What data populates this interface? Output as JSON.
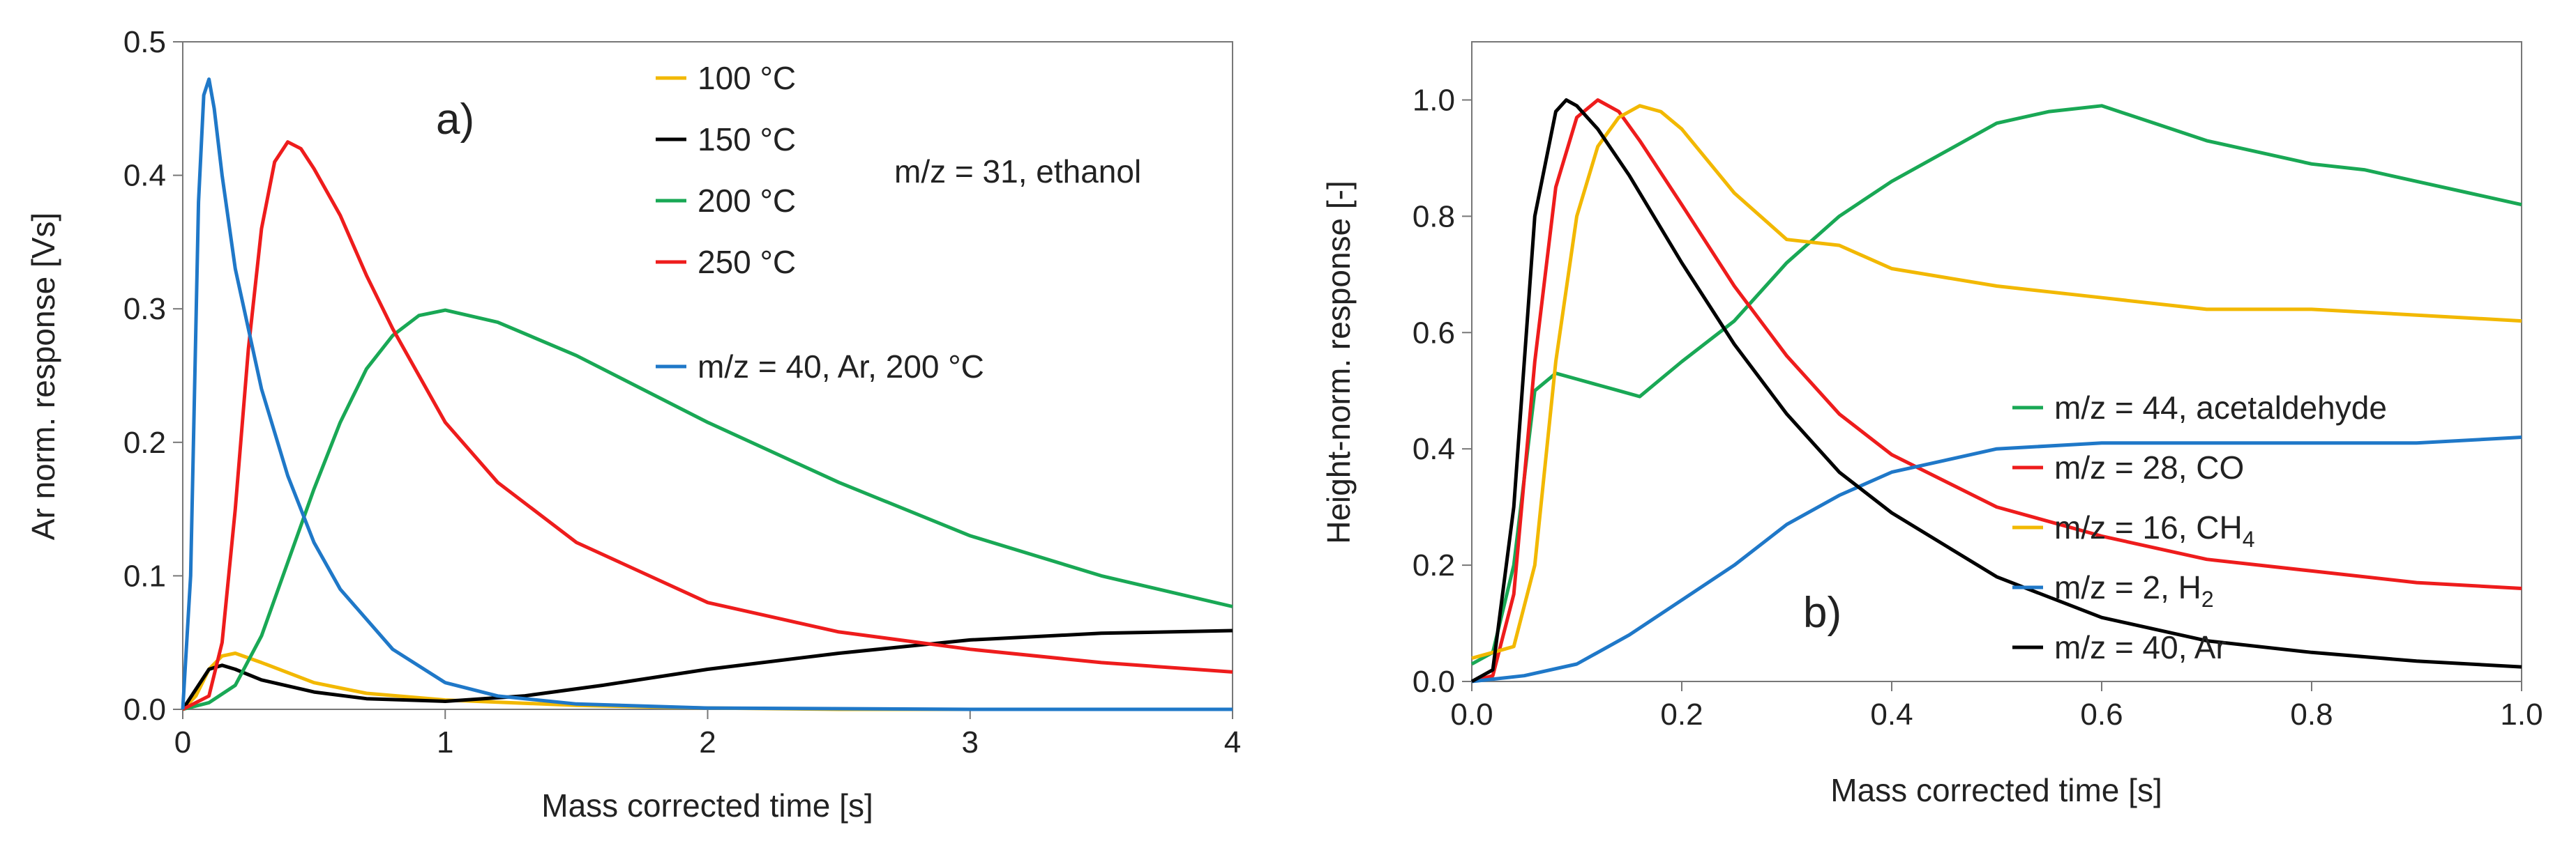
{
  "chart_data": [
    {
      "id": "a",
      "type": "line",
      "panel_label": "a)",
      "annotation": "m/z = 31, ethanol",
      "xlabel": "Mass corrected time [s]",
      "ylabel": "Ar norm. response [Vs]",
      "xlim": [
        0,
        4
      ],
      "ylim": [
        0,
        0.5
      ],
      "xticks": [
        0,
        1,
        2,
        3,
        4
      ],
      "xtick_labels": [
        "0",
        "1",
        "2",
        "3",
        "4"
      ],
      "yticks": [
        0,
        0.1,
        0.2,
        0.3,
        0.4,
        0.5
      ],
      "ytick_labels": [
        "0.0",
        "0.1",
        "0.2",
        "0.3",
        "0.4",
        "0.5"
      ],
      "legend_position": "top-right",
      "series": [
        {
          "name": "100 °C",
          "color": "#f2b800",
          "x": [
            0,
            0.05,
            0.1,
            0.15,
            0.2,
            0.3,
            0.5,
            0.7,
            1.0,
            1.5,
            2.0,
            2.5,
            3,
            4
          ],
          "y": [
            0,
            0.01,
            0.03,
            0.04,
            0.042,
            0.035,
            0.02,
            0.012,
            0.007,
            0.003,
            0.001,
            0,
            0,
            0
          ]
        },
        {
          "name": "150 °C",
          "color": "#000000",
          "x": [
            0,
            0.05,
            0.1,
            0.15,
            0.2,
            0.3,
            0.5,
            0.7,
            1.0,
            1.3,
            1.6,
            2.0,
            2.5,
            3.0,
            3.5,
            4.0
          ],
          "y": [
            0,
            0.015,
            0.03,
            0.033,
            0.03,
            0.022,
            0.013,
            0.008,
            0.006,
            0.01,
            0.018,
            0.03,
            0.042,
            0.052,
            0.057,
            0.059
          ]
        },
        {
          "name": "200 °C",
          "color": "#19a855",
          "x": [
            0,
            0.1,
            0.2,
            0.3,
            0.4,
            0.5,
            0.6,
            0.7,
            0.8,
            0.9,
            1.0,
            1.2,
            1.5,
            2.0,
            2.5,
            3.0,
            3.5,
            4.0
          ],
          "y": [
            0,
            0.005,
            0.018,
            0.055,
            0.11,
            0.165,
            0.215,
            0.255,
            0.28,
            0.295,
            0.299,
            0.29,
            0.265,
            0.215,
            0.17,
            0.13,
            0.1,
            0.077
          ]
        },
        {
          "name": "250 °C",
          "color": "#ee1c1c",
          "x": [
            0,
            0.1,
            0.15,
            0.2,
            0.25,
            0.3,
            0.35,
            0.4,
            0.45,
            0.5,
            0.6,
            0.7,
            0.8,
            1.0,
            1.2,
            1.5,
            2.0,
            2.5,
            3.0,
            3.5,
            4.0
          ],
          "y": [
            0,
            0.01,
            0.05,
            0.15,
            0.27,
            0.36,
            0.41,
            0.425,
            0.42,
            0.405,
            0.37,
            0.325,
            0.285,
            0.215,
            0.17,
            0.125,
            0.08,
            0.058,
            0.045,
            0.035,
            0.028
          ]
        },
        {
          "name": "m/z = 40, Ar, 200 °C",
          "color": "#1f78c8",
          "x": [
            0,
            0.03,
            0.06,
            0.08,
            0.1,
            0.12,
            0.15,
            0.2,
            0.3,
            0.4,
            0.5,
            0.6,
            0.8,
            1.0,
            1.2,
            1.5,
            2.0,
            3.0,
            4.0
          ],
          "y": [
            0,
            0.1,
            0.38,
            0.46,
            0.472,
            0.45,
            0.4,
            0.33,
            0.24,
            0.175,
            0.125,
            0.09,
            0.045,
            0.02,
            0.01,
            0.004,
            0.001,
            0,
            0
          ]
        }
      ]
    },
    {
      "id": "b",
      "type": "line",
      "panel_label": "b)",
      "xlabel": "Mass corrected time [s]",
      "ylabel": "Height-norm. response [-]",
      "xlim": [
        0,
        1
      ],
      "ylim": [
        0,
        1.1
      ],
      "xticks": [
        0,
        0.2,
        0.4,
        0.6,
        0.8,
        1.0
      ],
      "xtick_labels": [
        "0.0",
        "0.2",
        "0.4",
        "0.6",
        "0.8",
        "1.0"
      ],
      "yticks": [
        0,
        0.2,
        0.4,
        0.6,
        0.8,
        1.0
      ],
      "ytick_labels": [
        "0.0",
        "0.2",
        "0.4",
        "0.6",
        "0.8",
        "1.0"
      ],
      "legend_position": "bottom-right",
      "series": [
        {
          "name": "m/z = 44, acetaldehyde",
          "color": "#19a855",
          "x": [
            0,
            0.02,
            0.04,
            0.06,
            0.08,
            0.1,
            0.12,
            0.14,
            0.16,
            0.18,
            0.2,
            0.25,
            0.3,
            0.35,
            0.4,
            0.45,
            0.5,
            0.55,
            0.6,
            0.65,
            0.7,
            0.75,
            0.8,
            0.85,
            0.9,
            0.95,
            1.0
          ],
          "y": [
            0.03,
            0.05,
            0.2,
            0.5,
            0.53,
            0.52,
            0.51,
            0.5,
            0.49,
            0.52,
            0.55,
            0.62,
            0.72,
            0.8,
            0.86,
            0.91,
            0.96,
            0.98,
            0.99,
            0.96,
            0.93,
            0.91,
            0.89,
            0.88,
            0.86,
            0.84,
            0.82
          ]
        },
        {
          "name": "m/z = 28, CO",
          "color": "#ee1c1c",
          "x": [
            0,
            0.02,
            0.04,
            0.06,
            0.08,
            0.1,
            0.12,
            0.14,
            0.16,
            0.2,
            0.25,
            0.3,
            0.35,
            0.4,
            0.5,
            0.6,
            0.7,
            0.8,
            0.9,
            1.0
          ],
          "y": [
            0,
            0.01,
            0.15,
            0.55,
            0.85,
            0.97,
            1.0,
            0.98,
            0.93,
            0.82,
            0.68,
            0.56,
            0.46,
            0.39,
            0.3,
            0.25,
            0.21,
            0.19,
            0.17,
            0.16
          ]
        },
        {
          "name": "m/z = 16, CH",
          "name_sub": "4",
          "color": "#f2b800",
          "x": [
            0,
            0.02,
            0.04,
            0.06,
            0.08,
            0.1,
            0.12,
            0.14,
            0.16,
            0.18,
            0.2,
            0.25,
            0.3,
            0.35,
            0.4,
            0.5,
            0.6,
            0.7,
            0.8,
            0.9,
            1.0
          ],
          "y": [
            0.04,
            0.05,
            0.06,
            0.2,
            0.55,
            0.8,
            0.92,
            0.97,
            0.99,
            0.98,
            0.95,
            0.84,
            0.76,
            0.75,
            0.71,
            0.68,
            0.66,
            0.64,
            0.64,
            0.63,
            0.62
          ]
        },
        {
          "name": "m/z = 2, H",
          "name_sub": "2",
          "color": "#1f78c8",
          "x": [
            0,
            0.05,
            0.1,
            0.15,
            0.2,
            0.25,
            0.3,
            0.35,
            0.4,
            0.45,
            0.5,
            0.6,
            0.7,
            0.8,
            0.9,
            1.0
          ],
          "y": [
            0,
            0.01,
            0.03,
            0.08,
            0.14,
            0.2,
            0.27,
            0.32,
            0.36,
            0.38,
            0.4,
            0.41,
            0.41,
            0.41,
            0.41,
            0.42
          ]
        },
        {
          "name": "m/z = 40, Ar",
          "color": "#000000",
          "x": [
            0,
            0.02,
            0.04,
            0.06,
            0.08,
            0.09,
            0.1,
            0.12,
            0.15,
            0.2,
            0.25,
            0.3,
            0.35,
            0.4,
            0.5,
            0.6,
            0.7,
            0.8,
            0.9,
            1.0
          ],
          "y": [
            0,
            0.02,
            0.3,
            0.8,
            0.98,
            1.0,
            0.99,
            0.95,
            0.87,
            0.72,
            0.58,
            0.46,
            0.36,
            0.29,
            0.18,
            0.11,
            0.07,
            0.05,
            0.035,
            0.025
          ]
        }
      ]
    }
  ]
}
